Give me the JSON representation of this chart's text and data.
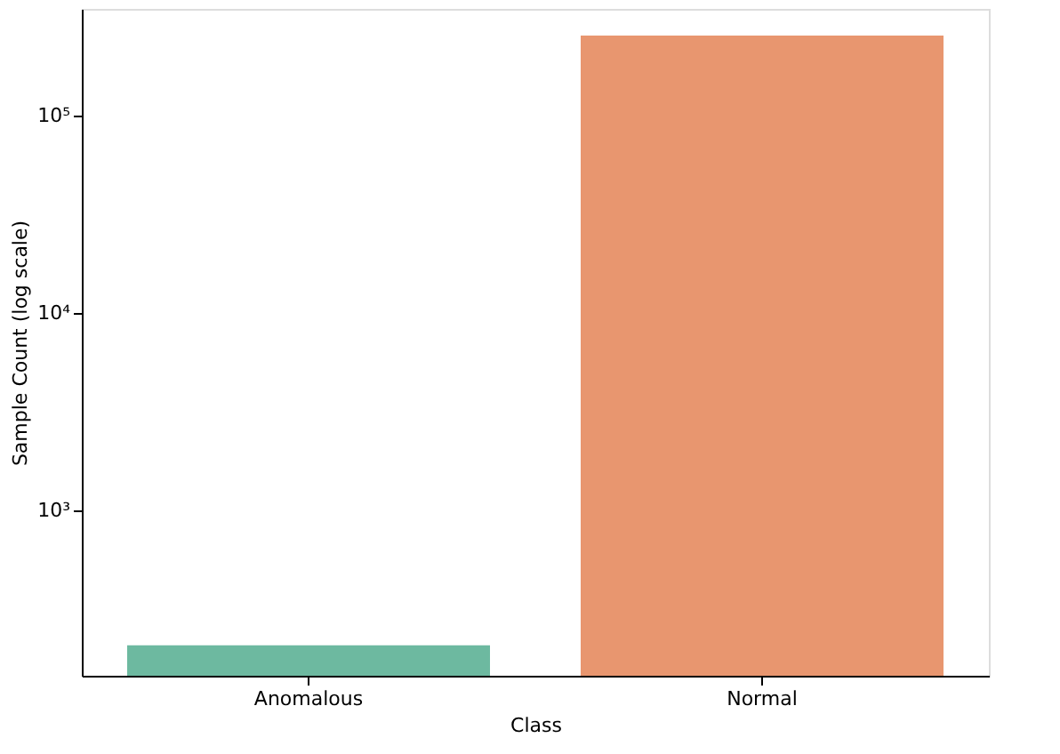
{
  "chart_data": {
    "type": "bar",
    "xlabel": "Class",
    "ylabel": "Sample Count (log scale)",
    "categories": [
      "Anomalous",
      "Normal"
    ],
    "values": [
      207,
      254000
    ],
    "colors": [
      "#6db9a0",
      "#e8966f"
    ],
    "log": true,
    "ylim": [
      145,
      347000
    ],
    "yticks": [
      {
        "value": 1000,
        "label": "10³"
      },
      {
        "value": 10000,
        "label": "10⁴"
      },
      {
        "value": 100000,
        "label": "10⁵"
      }
    ],
    "grid": false,
    "legend": false
  }
}
